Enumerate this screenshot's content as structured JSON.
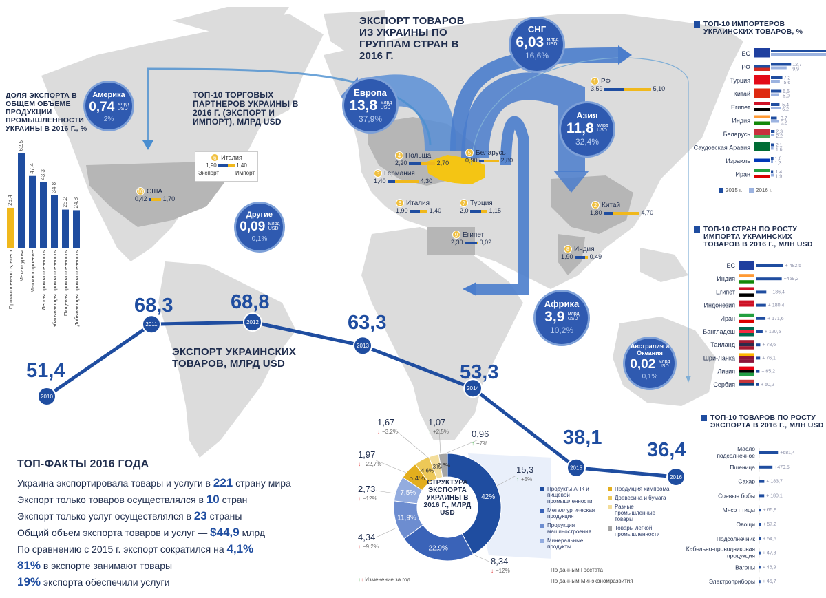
{
  "main_title": "ЭКСПОРТ ТОВАРОВ ИЗ УКРАИНЫ ПО ГРУППАМ СТРАН В 2016 Г.",
  "partners_title": "ТОП-10 ТОРГОВЫХ ПАРТНЕРОВ УКРАИНЫ В 2016 Г. (ЭКСПОРТ И ИМПОРТ), МЛРД USD",
  "partners_legend": {
    "export": "Экспорт",
    "import": "Импорт",
    "num": "6",
    "name": "Италия",
    "v1": "1,90",
    "v2": "1,40"
  },
  "regions": [
    {
      "name": "Америка",
      "value": "0,74",
      "unit": "млрд USD",
      "share": "2%"
    },
    {
      "name": "Европа",
      "value": "13,8",
      "unit": "млрд USD",
      "share": "37,9%"
    },
    {
      "name": "СНГ",
      "value": "6,03",
      "unit": "млрд USD",
      "share": "16,6%"
    },
    {
      "name": "Азия",
      "value": "11,8",
      "unit": "млрд USD",
      "share": "32,4%"
    },
    {
      "name": "Другие",
      "value": "0,09",
      "unit": "млрд USD",
      "share": "0,1%"
    },
    {
      "name": "Африка",
      "value": "3,9",
      "unit": "млрд USD",
      "share": "10,2%"
    },
    {
      "name": "Австралия и Океания",
      "value": "0,02",
      "unit": "млрд USD",
      "share": "0,1%"
    }
  ],
  "partners": [
    {
      "num": "1",
      "name": "РФ",
      "export": "3,59",
      "import": "5,10"
    },
    {
      "num": "2",
      "name": "Китай",
      "export": "1,80",
      "import": "4,70"
    },
    {
      "num": "3",
      "name": "Германия",
      "export": "1,40",
      "import": "4,30"
    },
    {
      "num": "4",
      "name": "Польша",
      "export": "2,20",
      "import": "2,70"
    },
    {
      "num": "5",
      "name": "Беларусь",
      "export": "0,90",
      "import": "2,80"
    },
    {
      "num": "6",
      "name": "Италия",
      "export": "1,90",
      "import": "1,40"
    },
    {
      "num": "7",
      "name": "Турция",
      "export": "2,0",
      "import": "1,15"
    },
    {
      "num": "8",
      "name": "Индия",
      "export": "1,90",
      "import": "0,49"
    },
    {
      "num": "9",
      "name": "Египет",
      "export": "2,30",
      "import": "0,02"
    },
    {
      "num": "10",
      "name": "США",
      "export": "0,42",
      "import": "1,70"
    }
  ],
  "industry": {
    "title": "ДОЛЯ ЭКСПОРТА В ОБЩЕМ ОБЪЕМЕ ПРОДУКЦИИ ПРОМЫШЛЕННОСТИ УКРАИНЫ В 2016 Г., %",
    "items": [
      {
        "label": "Промышленность, всего",
        "value": "26,4",
        "v": 26.4,
        "color": "#f0b81c"
      },
      {
        "label": "Металлургия",
        "value": "62,5",
        "v": 62.5,
        "color": "#1f4da0"
      },
      {
        "label": "Машиностроение",
        "value": "47,4",
        "v": 47.4,
        "color": "#1f4da0"
      },
      {
        "label": "Легкая промышленность",
        "value": "43,3",
        "v": 43.3,
        "color": "#1f4da0"
      },
      {
        "label": "Деревообрабатывающая промышленность",
        "value": "34,8",
        "v": 34.8,
        "color": "#1f4da0"
      },
      {
        "label": "Пищевая промышленность",
        "value": "25,2",
        "v": 25.2,
        "color": "#1f4da0"
      },
      {
        "label": "Добывающая промышленность",
        "value": "24,8",
        "v": 24.8,
        "color": "#1f4da0"
      }
    ]
  },
  "timeline": {
    "title": "ЭКСПОРТ УКРАИНСКИХ ТОВАРОВ, МЛРД USD",
    "points": [
      {
        "year": "2010",
        "value": "51,4"
      },
      {
        "year": "2011",
        "value": "68,3"
      },
      {
        "year": "2012",
        "value": "68,8"
      },
      {
        "year": "2013",
        "value": "63,3"
      },
      {
        "year": "2014",
        "value": "53,3"
      },
      {
        "year": "2015",
        "value": "38,1"
      },
      {
        "year": "2016",
        "value": "36,4"
      }
    ]
  },
  "importers": {
    "title": "ТОП-10 ИМПОРТЕРОВ УКРАИНСКИХ ТОВАРОВ, %",
    "legend_2015": "2015 г.",
    "legend_2016": "2016 г.",
    "rows": [
      {
        "name": "ЕС",
        "v2015": "37,2",
        "v2016": "37,9",
        "a": 37.2,
        "b": 37.9
      },
      {
        "name": "РФ",
        "v2015": "12,7",
        "v2016": "9,9",
        "a": 12.7,
        "b": 9.9
      },
      {
        "name": "Турция",
        "v2015": "7,2",
        "v2016": "5,6",
        "a": 7.2,
        "b": 5.6
      },
      {
        "name": "Китай",
        "v2015": "6,6",
        "v2016": "5,0",
        "a": 6.6,
        "b": 5.0
      },
      {
        "name": "Египет",
        "v2015": "5,4",
        "v2016": "6,2",
        "a": 5.4,
        "b": 6.2
      },
      {
        "name": "Индия",
        "v2015": "3,7",
        "v2016": "5,2",
        "a": 3.7,
        "b": 5.2
      },
      {
        "name": "Беларусь",
        "v2015": "2,3",
        "v2016": "2,2",
        "a": 2.3,
        "b": 2.2
      },
      {
        "name": "Саудовская Аравия",
        "v2015": "2,1",
        "v2016": "1,6",
        "a": 2.1,
        "b": 1.6
      },
      {
        "name": "Израиль",
        "v2015": "1,6",
        "v2016": "1,3",
        "a": 1.6,
        "b": 1.3
      },
      {
        "name": "Иран",
        "v2015": "1,4",
        "v2016": "1,9",
        "a": 1.4,
        "b": 1.9
      }
    ]
  },
  "growth_import": {
    "title": "ТОП-10 СТРАН ПО РОСТУ ИМПОРТА УКРАИНСКИХ ТОВАРОВ В 2016 Г., МЛН USD",
    "rows": [
      {
        "name": "ЕС",
        "value": "+ 482,5",
        "v": 482.5
      },
      {
        "name": "Индия",
        "value": "+459,2",
        "v": 459.2
      },
      {
        "name": "Египет",
        "value": "+ 186,4",
        "v": 186.4
      },
      {
        "name": "Индонезия",
        "value": "+ 180,4",
        "v": 180.4
      },
      {
        "name": "Иран",
        "value": "+ 171,6",
        "v": 171.6
      },
      {
        "name": "Бангладеш",
        "value": "+ 120,5",
        "v": 120.5
      },
      {
        "name": "Таиланд",
        "value": "+ 78,6",
        "v": 78.6
      },
      {
        "name": "Шри-Ланка",
        "value": "+ 76,1",
        "v": 76.1
      },
      {
        "name": "Ливия",
        "value": "+ 65,2",
        "v": 65.2
      },
      {
        "name": "Сербия",
        "value": "+ 50,2",
        "v": 50.2
      }
    ]
  },
  "growth_goods": {
    "title": "ТОП-10 ТОВАРОВ ПО РОСТУ ЭКСПОРТА В 2016 Г., МЛН USD",
    "rows": [
      {
        "name": "Масло подсолнечное",
        "value": "+681,4",
        "v": 681.4
      },
      {
        "name": "Пшеница",
        "value": "+479,5",
        "v": 479.5
      },
      {
        "name": "Сахар",
        "value": "+ 183,7",
        "v": 183.7
      },
      {
        "name": "Соевые бобы",
        "value": "+ 180,1",
        "v": 180.1
      },
      {
        "name": "Мясо птицы",
        "value": "+ 65,9",
        "v": 65.9
      },
      {
        "name": "Овощи",
        "value": "+ 57,2",
        "v": 57.2
      },
      {
        "name": "Подсолнечник",
        "value": "+ 54,6",
        "v": 54.6
      },
      {
        "name": "Кабельно-проводниковая продукция",
        "value": "+ 47,8",
        "v": 47.8
      },
      {
        "name": "Вагоны",
        "value": "+ 46,9",
        "v": 46.9
      },
      {
        "name": "Электроприборы",
        "value": "+ 45,7",
        "v": 45.7
      }
    ]
  },
  "facts": {
    "title": "ТОП-ФАКТЫ 2016 ГОДА",
    "l1a": "Украина экспортировала товары и услуги в ",
    "l1b": "221",
    "l1c": " страну мира",
    "l2a": "Экспорт только товаров осуществлялся в ",
    "l2b": "10",
    "l2c": " стран",
    "l3a": "Экспорт только услуг осуществлялся в ",
    "l3b": "23",
    "l3c": " страны",
    "l4a": "Общий объем экспорта товаров и услуг — ",
    "l4b": "$44,9",
    "l4c": " млрд",
    "l5a": "По сравнению с 2015 г. экспорт сократился на ",
    "l5b": "4,1%",
    "l6b": "81%",
    "l6c": " в экспорте занимают товары",
    "l7b": "19%",
    "l7c": " экспорта обеспечили услуги"
  },
  "structure": {
    "center": "СТРУКТУРА ЭКСПОРТА УКРАИНЫ В 2016 Г., МЛРД USD",
    "change_legend": "Изменение за год",
    "source1": "По данным Госстата",
    "source2": "По данным Минэкономразвития",
    "chart_data": {
      "type": "pie",
      "slices": [
        {
          "label": "Продукты АПК и пищевой промышленности",
          "pct": 42,
          "pct_label": "42%",
          "value": "15,3",
          "change": "+5%",
          "dir": "up",
          "color": "#1f4da0"
        },
        {
          "label": "Металлургическая продукция",
          "pct": 22.9,
          "pct_label": "22,9%",
          "value": "8,34",
          "change": "−12%",
          "dir": "down",
          "color": "#3a63b8"
        },
        {
          "label": "Продукция машиностроения",
          "pct": 11.9,
          "pct_label": "11,9%",
          "value": "4,34",
          "change": "−9,2%",
          "dir": "down",
          "color": "#6d8dd0"
        },
        {
          "label": "Минеральные продукты",
          "pct": 7.5,
          "pct_label": "7,5%",
          "value": "2,73",
          "change": "−12%",
          "dir": "down",
          "color": "#93acdf"
        },
        {
          "label": "Продукция химпрома",
          "pct": 5.4,
          "pct_label": "5,4%",
          "value": "1,97",
          "change": "−22,7%",
          "dir": "down",
          "color": "#e3ae1e"
        },
        {
          "label": "Древесина и бумага",
          "pct": 4.6,
          "pct_label": "4,6%",
          "value": "1,67",
          "change": "−3,2%",
          "dir": "down",
          "color": "#edc857"
        },
        {
          "label": "Разные промышленные товары",
          "pct": 3,
          "pct_label": "3%",
          "value": "1,07",
          "change": "+2,5%",
          "dir": "up",
          "color": "#f3dd9a"
        },
        {
          "label": "Товары легкой промышленности",
          "pct": 2.6,
          "pct_label": "2,6%",
          "value": "0,96",
          "change": "+7%",
          "dir": "up",
          "color": "#a5a5a5"
        }
      ]
    }
  }
}
